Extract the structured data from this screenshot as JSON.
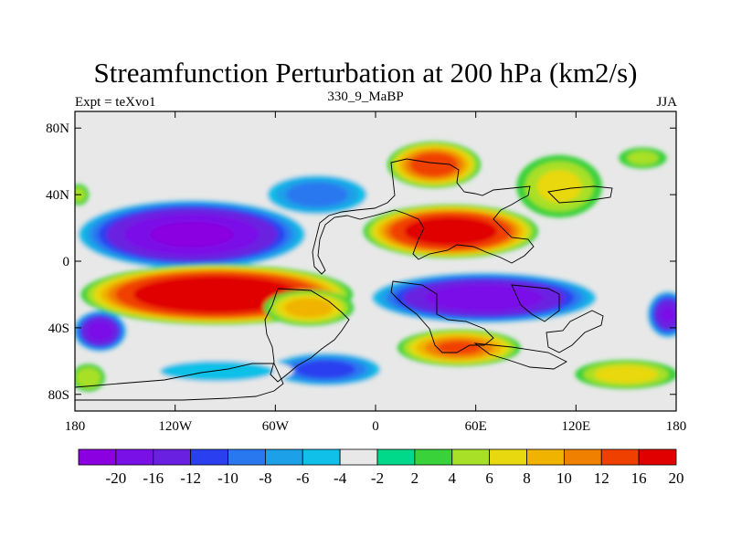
{
  "title": "Streamfunction Perturbation at 200 hPa (km2/s)",
  "subtitle_left": "Expt = teXvo1",
  "subtitle_center": "330_9_MaBP",
  "subtitle_right": "JJA",
  "map": {
    "projection": "cylindrical-equidistant",
    "lon_range": [
      -180,
      180
    ],
    "lat_range": [
      -90,
      90
    ],
    "lon_ticks": [
      {
        "value": -180,
        "label": "180"
      },
      {
        "value": -120,
        "label": "120W"
      },
      {
        "value": -60,
        "label": "60W"
      },
      {
        "value": 0,
        "label": "0"
      },
      {
        "value": 60,
        "label": "60E"
      },
      {
        "value": 120,
        "label": "120E"
      },
      {
        "value": 180,
        "label": "180"
      }
    ],
    "lat_ticks": [
      {
        "value": 80,
        "label": "80N"
      },
      {
        "value": 40,
        "label": "40N"
      },
      {
        "value": 0,
        "label": "0"
      },
      {
        "value": -40,
        "label": "40S"
      },
      {
        "value": -80,
        "label": "80S"
      }
    ],
    "background_color": "#e8e8e8",
    "blobs": [
      {
        "name": "neg-pacific-40s",
        "lon": -165,
        "lat": -42,
        "rlon": 18,
        "rlat": 14,
        "value": -18
      },
      {
        "name": "neg-namerica",
        "lon": -110,
        "lat": 16,
        "rlon": 75,
        "rlat": 23,
        "value": -21
      },
      {
        "name": "neg-natlantic",
        "lon": -35,
        "lat": 40,
        "rlon": 38,
        "rlat": 15,
        "value": -9
      },
      {
        "name": "pos-samerica",
        "lon": -95,
        "lat": -20,
        "rlon": 85,
        "rlat": 19,
        "value": 23
      },
      {
        "name": "pos-satlantic",
        "lon": -40,
        "lat": -28,
        "rlon": 30,
        "rlat": 12,
        "value": 9
      },
      {
        "name": "neg-south-high-lat",
        "lon": -30,
        "lat": -65,
        "rlon": 40,
        "rlat": 12,
        "value": -11
      },
      {
        "name": "neg-southern-ocean",
        "lon": -95,
        "lat": -66,
        "rlon": 55,
        "rlat": 10,
        "value": -5
      },
      {
        "name": "pos-eurasia",
        "lon": 45,
        "lat": 18,
        "rlon": 55,
        "rlat": 17,
        "value": 20
      },
      {
        "name": "pos-north-asia",
        "lon": 35,
        "lat": 58,
        "rlon": 30,
        "rlat": 15,
        "value": 14
      },
      {
        "name": "pos-east-asia",
        "lon": 110,
        "lat": 45,
        "rlon": 30,
        "rlat": 22,
        "value": 6
      },
      {
        "name": "pos-npacific",
        "lon": 160,
        "lat": 62,
        "rlon": 18,
        "rlat": 8,
        "value": 4
      },
      {
        "name": "pos-natl-edge",
        "lon": -178,
        "lat": 40,
        "rlon": 8,
        "rlat": 8,
        "value": 4
      },
      {
        "name": "neg-indian-ocean",
        "lon": 65,
        "lat": -22,
        "rlon": 75,
        "rlat": 17,
        "value": -19
      },
      {
        "name": "neg-south-pacific",
        "lon": 175,
        "lat": -32,
        "rlon": 14,
        "rlat": 16,
        "value": -16
      },
      {
        "name": "pos-south-africa",
        "lon": 50,
        "lat": -52,
        "rlon": 40,
        "rlat": 12,
        "value": 12
      },
      {
        "name": "pos-south-pacific",
        "lon": 150,
        "lat": -68,
        "rlon": 35,
        "rlat": 10,
        "value": 7
      },
      {
        "name": "pos-antarctic-w",
        "lon": -172,
        "lat": -70,
        "rlon": 12,
        "rlat": 10,
        "value": 5
      }
    ]
  },
  "colorbar": {
    "labels": [
      "-20",
      "-16",
      "-12",
      "-10",
      "-8",
      "-6",
      "-4",
      "-2",
      "2",
      "4",
      "6",
      "8",
      "10",
      "12",
      "16",
      "20"
    ],
    "colors": [
      "#8a00e0",
      "#7a10e8",
      "#6a20e0",
      "#2a40f0",
      "#2a78f0",
      "#1ca0e8",
      "#10c0e8",
      "#e8e8e8",
      "#00d88a",
      "#3ad23a",
      "#a8e028",
      "#e8d810",
      "#f0b400",
      "#f08000",
      "#f04000",
      "#e00000"
    ]
  }
}
